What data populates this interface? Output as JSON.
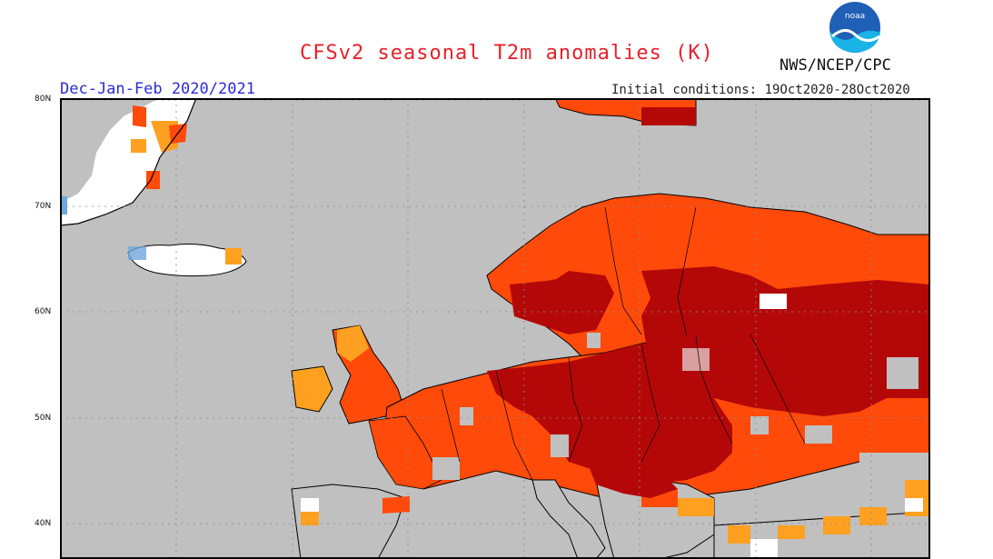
{
  "title": "CFSv2 seasonal T2m anomalies (K)",
  "agency": "NWS/NCEP/CPC",
  "logo_text": "noaa",
  "season": "Dec-Jan-Feb 2020/2021",
  "initial_conditions": "Initial conditions: 19Oct2020-28Oct2020",
  "lat_labels": [
    "80N",
    "70N",
    "60N",
    "50N",
    "40N"
  ],
  "colors": {
    "background": "#c0c0c0",
    "land_outline": "#000000",
    "grid": "#8a8a8a",
    "anomaly_light": "#ffa020",
    "anomaly_mid": "#ff4a0a",
    "anomaly_strong": "#b40808",
    "anomaly_pale": "#d8a0a0",
    "near_zero": "#ffffff",
    "cold": "#6fa8dc"
  }
}
